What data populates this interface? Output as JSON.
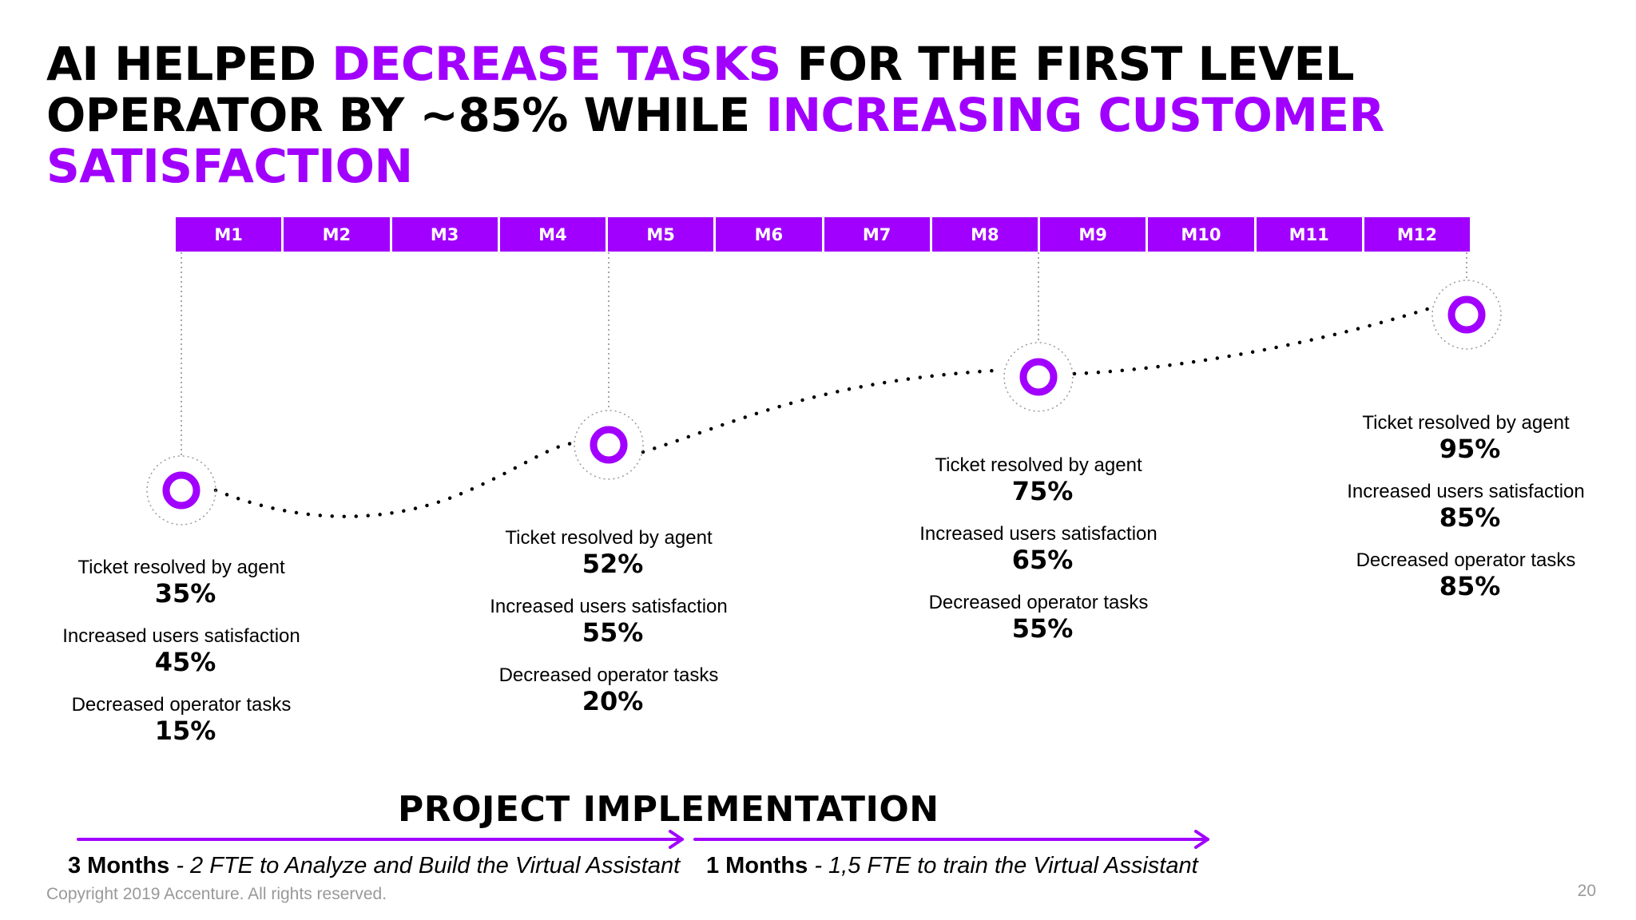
{
  "title": {
    "p1": "AI HELPED ",
    "p2": "DECREASE TASKS",
    "p3": " FOR THE FIRST LEVEL OPERATOR BY ~85% WHILE ",
    "p4": "INCREASING CUSTOMER SATISFACTION"
  },
  "months": [
    "M1",
    "M2",
    "M3",
    "M4",
    "M5",
    "M6",
    "M7",
    "M8",
    "M9",
    "M10",
    "M11",
    "M12"
  ],
  "milestones": [
    {
      "stats": [
        {
          "label": "Ticket resolved by agent",
          "value": "35%"
        },
        {
          "label": "Increased users satisfaction",
          "value": "45%"
        },
        {
          "label": "Decreased operator tasks",
          "value": "15%"
        }
      ]
    },
    {
      "stats": [
        {
          "label": "Ticket resolved by agent",
          "value": "52%"
        },
        {
          "label": "Increased users satisfaction",
          "value": "55%"
        },
        {
          "label": "Decreased operator tasks",
          "value": "20%"
        }
      ]
    },
    {
      "stats": [
        {
          "label": "Ticket resolved by agent",
          "value": "75%"
        },
        {
          "label": "Increased users satisfaction",
          "value": "65%"
        },
        {
          "label": "Decreased operator tasks",
          "value": "55%"
        }
      ]
    },
    {
      "stats": [
        {
          "label": "Ticket resolved by agent",
          "value": "95%"
        },
        {
          "label": "Increased users satisfaction",
          "value": "85%"
        },
        {
          "label": "Decreased operator tasks",
          "value": "85%"
        }
      ]
    }
  ],
  "implementation": {
    "title": "PROJECT IMPLEMENTATION",
    "phase1": {
      "duration": "3 Months",
      "desc": " - 2 FTE to Analyze and Build the Virtual Assistant"
    },
    "phase2": {
      "duration": "1 Months",
      "desc": "  - 1,5 FTE to train the Virtual Assistant"
    }
  },
  "footer": {
    "copyright": "Copyright 2019 Accenture. All rights reserved.",
    "page_number": "20"
  },
  "colors": {
    "accent": "#a100ff",
    "text": "#000000",
    "muted": "#999999"
  }
}
